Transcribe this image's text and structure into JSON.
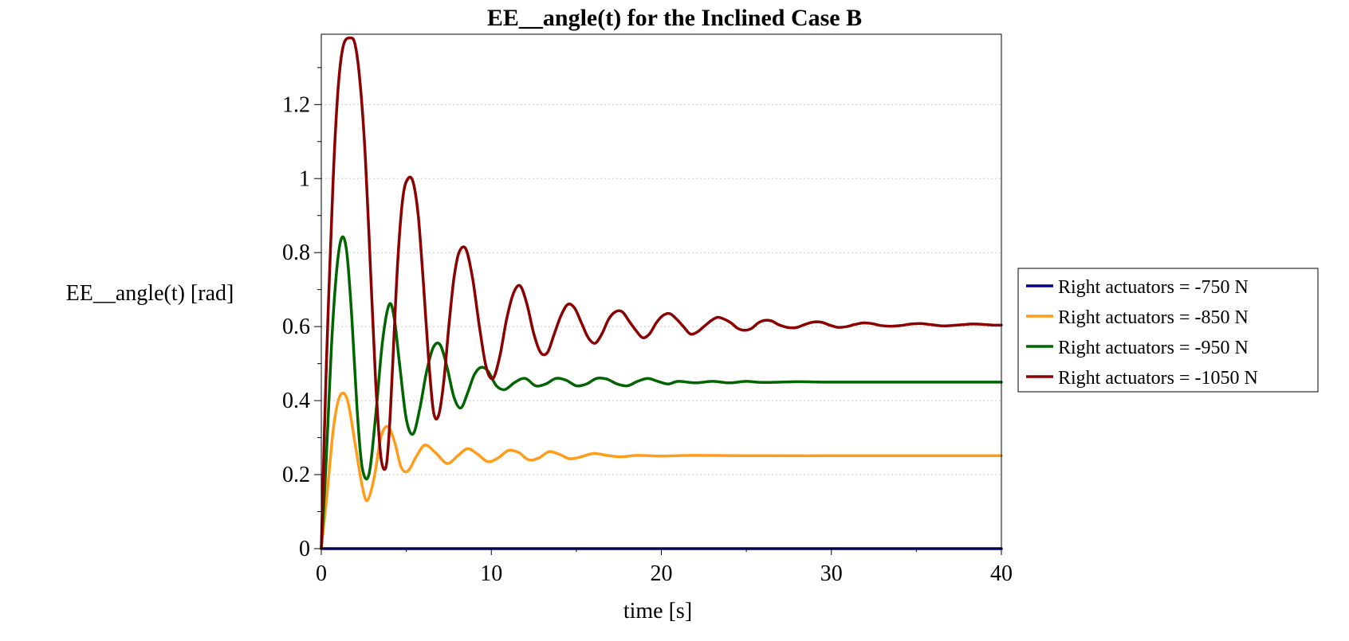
{
  "chart_data": {
    "type": "line",
    "title": "EE__angle(t) for the Inclined Case B",
    "xlabel": "time [s]",
    "ylabel": "EE__angle(t) [rad]",
    "xlim": [
      0,
      40
    ],
    "ylim": [
      0,
      1.39
    ],
    "xticks": [
      0,
      10,
      20,
      30,
      40
    ],
    "xtick_labels": [
      "0",
      "10",
      "20",
      "30",
      "40"
    ],
    "yticks": [
      0,
      0.2,
      0.4,
      0.6,
      0.8,
      1,
      1.2
    ],
    "ytick_labels": [
      "0",
      "0.2",
      "0.4",
      "0.6",
      "0.8",
      "1",
      "1.2"
    ],
    "grid": "horizontal dotted",
    "legend_position": "right",
    "series": [
      {
        "name": "Right actuators = -750 N",
        "color": "#00008b",
        "x": [
          0,
          40
        ],
        "y": [
          0,
          0
        ]
      },
      {
        "name": "Right actuators = -850 N",
        "color": "#ff9c1a",
        "x": [
          0,
          0.3,
          0.7,
          1.0,
          1.3,
          1.6,
          2.0,
          2.4,
          2.7,
          3.1,
          3.5,
          3.9,
          4.3,
          4.7,
          5.1,
          5.6,
          6.1,
          6.7,
          7.4,
          8.0,
          8.6,
          9.2,
          9.8,
          10.4,
          11.0,
          11.6,
          12.2,
          12.8,
          13.4,
          14.0,
          14.6,
          15.2,
          16.0,
          16.8,
          17.6,
          18.6,
          20,
          22,
          25,
          30,
          35,
          40
        ],
        "y": [
          0,
          0.13,
          0.32,
          0.4,
          0.42,
          0.39,
          0.28,
          0.17,
          0.13,
          0.19,
          0.3,
          0.33,
          0.29,
          0.22,
          0.21,
          0.25,
          0.28,
          0.26,
          0.23,
          0.25,
          0.27,
          0.255,
          0.235,
          0.245,
          0.265,
          0.26,
          0.24,
          0.245,
          0.262,
          0.255,
          0.243,
          0.247,
          0.257,
          0.252,
          0.248,
          0.252,
          0.25,
          0.252,
          0.251,
          0.251,
          0.251,
          0.251
        ]
      },
      {
        "name": "Right actuators = -950 N",
        "color": "#006400",
        "x": [
          0,
          0.3,
          0.6,
          0.9,
          1.2,
          1.5,
          1.8,
          2.1,
          2.4,
          2.8,
          3.2,
          3.6,
          4.0,
          4.3,
          4.6,
          5.0,
          5.4,
          5.8,
          6.2,
          6.6,
          7.0,
          7.4,
          7.8,
          8.2,
          8.6,
          9.0,
          9.4,
          9.8,
          10.3,
          10.8,
          11.4,
          12.0,
          12.6,
          13.2,
          13.8,
          14.4,
          15.0,
          15.6,
          16.2,
          16.8,
          17.4,
          18.0,
          18.6,
          19.2,
          19.8,
          20.4,
          21.0,
          22,
          23,
          24,
          25,
          26,
          28,
          30,
          35,
          40
        ],
        "y": [
          0,
          0.25,
          0.55,
          0.75,
          0.84,
          0.8,
          0.62,
          0.38,
          0.22,
          0.2,
          0.36,
          0.56,
          0.66,
          0.62,
          0.5,
          0.35,
          0.31,
          0.38,
          0.48,
          0.545,
          0.55,
          0.49,
          0.41,
          0.38,
          0.42,
          0.47,
          0.49,
          0.48,
          0.44,
          0.43,
          0.45,
          0.46,
          0.44,
          0.445,
          0.46,
          0.455,
          0.44,
          0.445,
          0.46,
          0.458,
          0.445,
          0.44,
          0.452,
          0.46,
          0.452,
          0.445,
          0.452,
          0.448,
          0.452,
          0.448,
          0.452,
          0.449,
          0.451,
          0.45,
          0.45,
          0.45
        ]
      },
      {
        "name": "Right actuators = -1050 N",
        "color": "#8b0000",
        "x": [
          0,
          0.3,
          0.7,
          1.0,
          1.3,
          1.7,
          2.0,
          2.3,
          2.6,
          2.9,
          3.2,
          3.5,
          3.8,
          4.0,
          4.2,
          4.5,
          4.8,
          5.1,
          5.4,
          5.7,
          6.0,
          6.3,
          6.6,
          6.9,
          7.2,
          7.5,
          7.8,
          8.1,
          8.5,
          8.9,
          9.3,
          9.7,
          10.1,
          10.5,
          10.9,
          11.3,
          11.7,
          12.1,
          12.5,
          12.9,
          13.3,
          13.7,
          14.1,
          14.5,
          14.9,
          15.3,
          15.7,
          16.1,
          16.5,
          16.9,
          17.3,
          17.7,
          18.1,
          18.5,
          18.9,
          19.3,
          19.7,
          20.1,
          20.5,
          20.9,
          21.3,
          21.7,
          22.1,
          22.5,
          22.9,
          23.3,
          23.7,
          24.1,
          24.5,
          24.9,
          25.3,
          25.7,
          26.1,
          26.5,
          26.9,
          27.4,
          27.9,
          28.4,
          28.9,
          29.4,
          29.9,
          30.4,
          30.9,
          31.4,
          31.9,
          32.4,
          32.9,
          33.5,
          34.1,
          34.7,
          35.3,
          35.9,
          36.5,
          37.1,
          37.7,
          38.3,
          38.9,
          39.5,
          40
        ],
        "y": [
          0,
          0.5,
          1.0,
          1.25,
          1.36,
          1.38,
          1.36,
          1.25,
          1.05,
          0.75,
          0.45,
          0.25,
          0.22,
          0.32,
          0.5,
          0.78,
          0.95,
          1.0,
          0.99,
          0.9,
          0.72,
          0.52,
          0.37,
          0.36,
          0.45,
          0.6,
          0.73,
          0.8,
          0.81,
          0.73,
          0.6,
          0.49,
          0.46,
          0.52,
          0.62,
          0.69,
          0.71,
          0.66,
          0.58,
          0.53,
          0.53,
          0.58,
          0.63,
          0.66,
          0.65,
          0.61,
          0.57,
          0.555,
          0.58,
          0.62,
          0.64,
          0.64,
          0.615,
          0.59,
          0.57,
          0.58,
          0.61,
          0.63,
          0.635,
          0.62,
          0.6,
          0.58,
          0.585,
          0.6,
          0.615,
          0.625,
          0.62,
          0.61,
          0.595,
          0.59,
          0.595,
          0.61,
          0.617,
          0.615,
          0.605,
          0.598,
          0.597,
          0.605,
          0.612,
          0.612,
          0.604,
          0.598,
          0.6,
          0.606,
          0.61,
          0.608,
          0.603,
          0.601,
          0.603,
          0.607,
          0.608,
          0.605,
          0.602,
          0.603,
          0.605,
          0.607,
          0.606,
          0.604,
          0.604
        ]
      }
    ]
  }
}
